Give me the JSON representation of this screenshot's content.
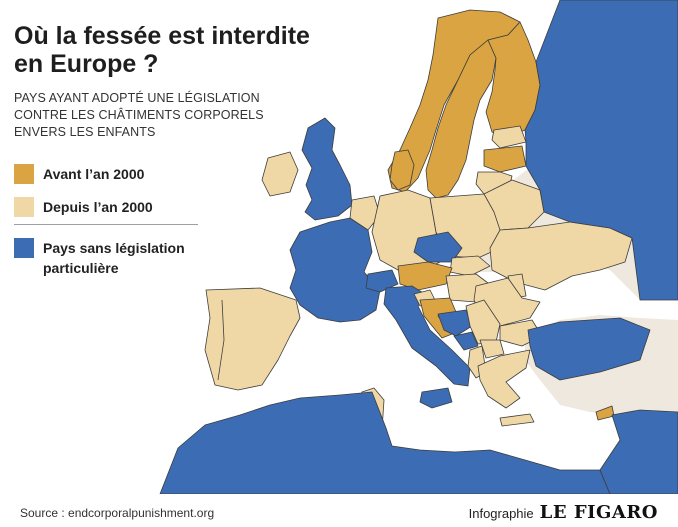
{
  "title": {
    "line1": "Où la fessée est interdite",
    "line2": "en Europe ?"
  },
  "subtitle": {
    "line1": "PAYS AYANT ADOPTÉ UNE LÉGISLATION",
    "line2": "CONTRE LES CHÂTIMENTS CORPORELS",
    "line3": "ENVERS LES ENFANTS"
  },
  "legend": {
    "before_2000": {
      "label": "Avant l’an 2000",
      "color": "#d9a441"
    },
    "since_2000": {
      "label": "Depuis l’an 2000",
      "color": "#f0d7a6"
    },
    "none": {
      "label_line1": "Pays sans législation",
      "label_line2": "particulière",
      "color": "#3b6cb4"
    }
  },
  "colors": {
    "sea": "#ffffff",
    "non_europe": "#efe8de",
    "border": "#3d3d3d"
  },
  "footer": {
    "source": "Source : endcorporalpunishment.org",
    "credit_prefix": "Infographie",
    "brand": "LE FIGARO"
  }
}
